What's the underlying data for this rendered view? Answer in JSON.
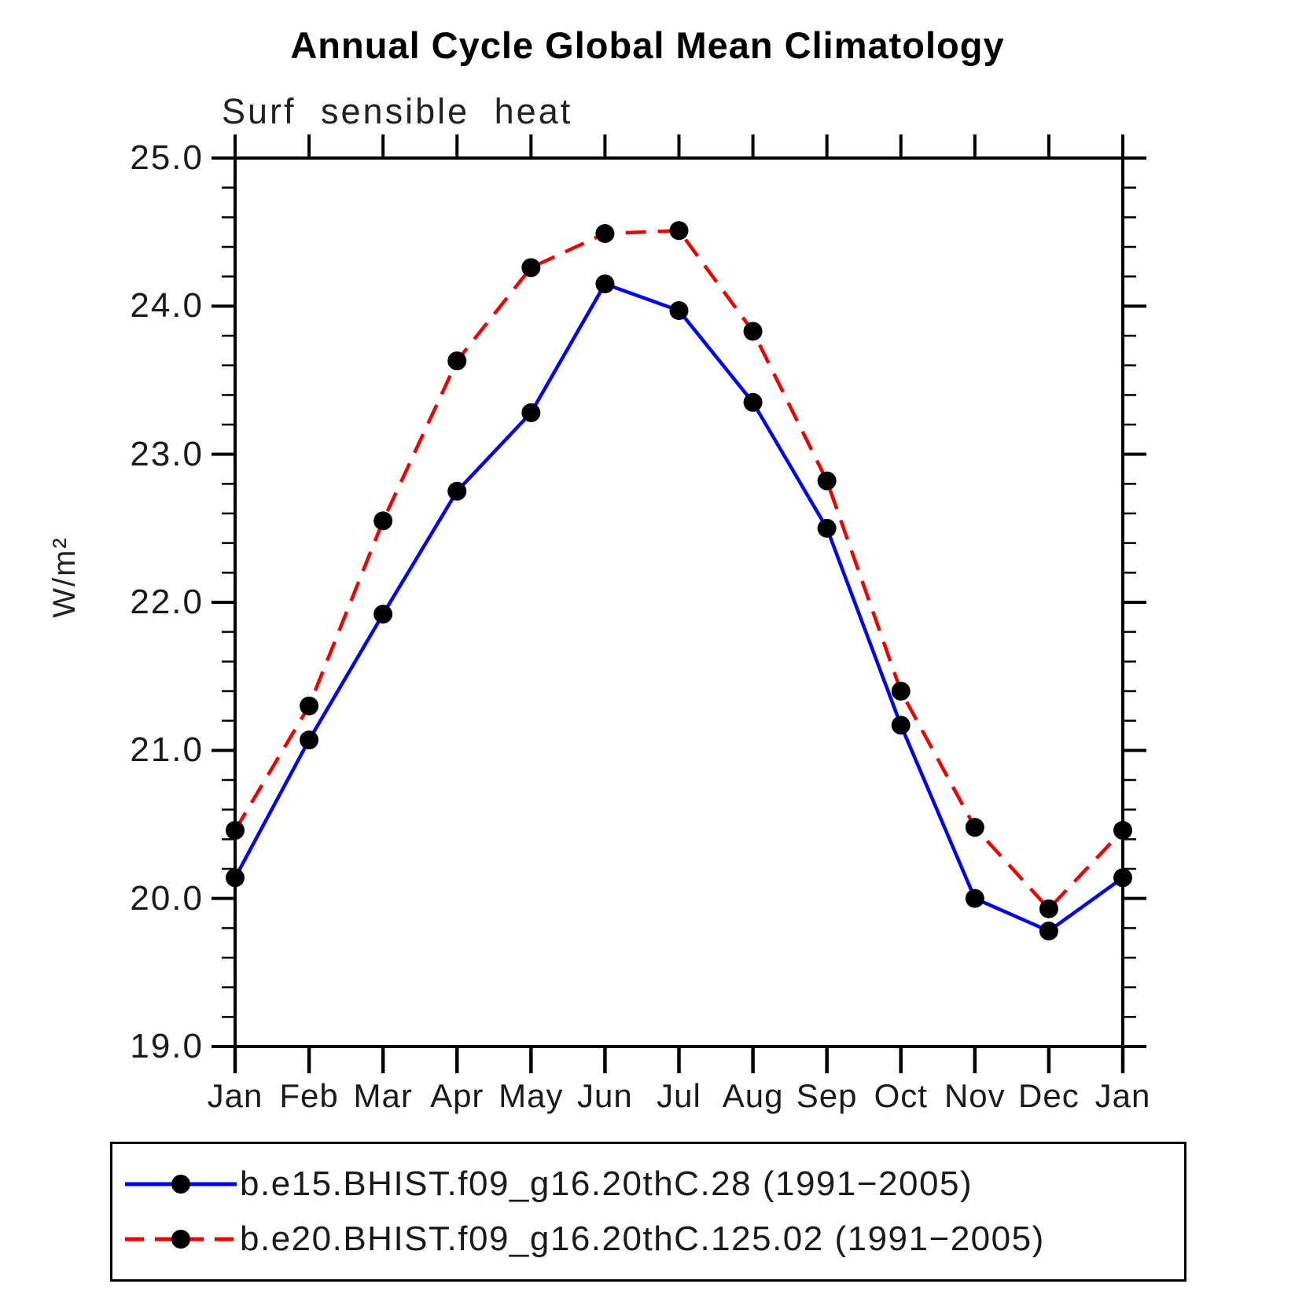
{
  "title": "Annual Cycle Global Mean Climatology",
  "subtitle": "Surf sensible heat",
  "ylabel": "W/m²",
  "chart_data": {
    "type": "line",
    "title": "Annual Cycle Global Mean Climatology",
    "subtitle": "Surf sensible heat",
    "xlabel": "",
    "ylabel": "W/m²",
    "categories": [
      "Jan",
      "Feb",
      "Mar",
      "Apr",
      "May",
      "Jun",
      "Jul",
      "Aug",
      "Sep",
      "Oct",
      "Nov",
      "Dec",
      "Jan"
    ],
    "series": [
      {
        "name": "b.e15.BHIST.f09_g16.20thC.28 (1991−2005)",
        "color": "#0000ee",
        "line_style": "solid",
        "marker": "filled-black-circle",
        "values": [
          20.14,
          21.07,
          21.92,
          22.75,
          23.28,
          24.15,
          23.97,
          23.35,
          22.5,
          21.17,
          20.0,
          19.78,
          20.14
        ]
      },
      {
        "name": "b.e20.BHIST.f09_g16.20thC.125.02 (1991−2005)",
        "color": "#ee0000",
        "line_style": "dashed",
        "marker": "filled-black-circle",
        "values": [
          20.46,
          21.3,
          22.55,
          23.63,
          24.26,
          24.49,
          24.51,
          23.83,
          22.82,
          21.4,
          20.48,
          19.93,
          20.46
        ]
      }
    ],
    "ylim": [
      19.0,
      25.0
    ],
    "ytick_major_step": 1.0,
    "ytick_minor_step": 0.2,
    "ytick_labels": [
      "25.0",
      "24.0",
      "23.0",
      "22.0",
      "21.0",
      "20.0",
      "19.0"
    ],
    "grid": false,
    "legend_position": "bottom",
    "marker_color": "#000000"
  }
}
